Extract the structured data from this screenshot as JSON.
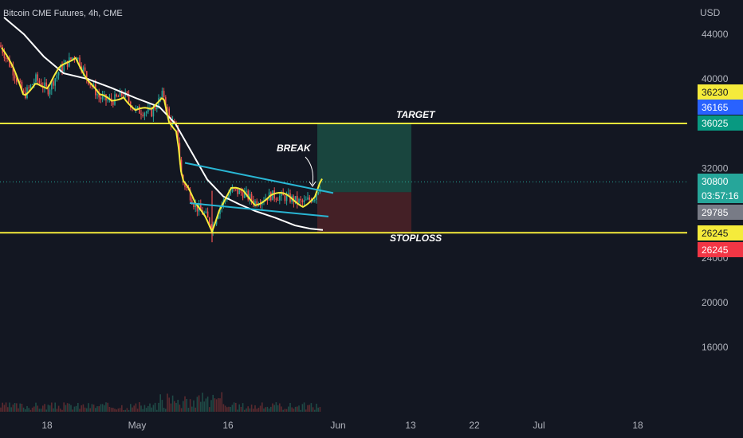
{
  "header": {
    "title": "Bitcoin CME Futures, 4h, CME",
    "currency": "USD"
  },
  "colors": {
    "background": "#131722",
    "up": "#26a69a",
    "down": "#ef5350",
    "level_line": "#f5eb3b",
    "trendline": "#29b6d4",
    "ma_fast": "#f5eb3b",
    "ma_slow": "#ffffff",
    "target_zone": "#1b4d43",
    "stop_zone": "#4a2127"
  },
  "annotations": {
    "target": "TARGET",
    "stoploss": "STOPLOSS",
    "break": "BREAK"
  },
  "price_tags": [
    {
      "text": "36230",
      "bg": "#f5eb3b",
      "fg": "#131722",
      "price": 36230
    },
    {
      "text": "36165",
      "bg": "#2962ff",
      "fg": "#ffffff",
      "price": 36165
    },
    {
      "text": "36025",
      "bg": "#089981",
      "fg": "#ffffff",
      "price": 36025
    },
    {
      "text": "30800",
      "bg": "#26a69a",
      "fg": "#ffffff",
      "price": 30800
    },
    {
      "text": "03:57:16",
      "bg": "#26a69a",
      "fg": "#ffffff",
      "price": 30800,
      "sub": true
    },
    {
      "text": "29785",
      "bg": "#787b86",
      "fg": "#ffffff",
      "price": 29785
    },
    {
      "text": "26245",
      "bg": "#f5eb3b",
      "fg": "#131722",
      "price": 26245
    },
    {
      "text": "26245",
      "bg": "#f23645",
      "fg": "#ffffff",
      "price": 26245,
      "sub": true
    }
  ],
  "chart_data": {
    "type": "candlestick",
    "title": "Bitcoin CME Futures, 4h, CME",
    "y_axis": {
      "label": "USD",
      "ticks": [
        44000,
        40000,
        32000,
        24000,
        20000,
        16000
      ]
    },
    "x_axis": {
      "ticks": [
        "18",
        "May",
        "16",
        "Jun",
        "13",
        "22",
        "Jul",
        "18"
      ]
    },
    "levels": [
      {
        "name": "target",
        "price": 36025
      },
      {
        "name": "stoploss",
        "price": 26245
      }
    ],
    "position": {
      "entry": 30800,
      "target": 36025,
      "stop": 26245
    },
    "last_price": 30800,
    "countdown": "03:57:16",
    "grid": false
  }
}
